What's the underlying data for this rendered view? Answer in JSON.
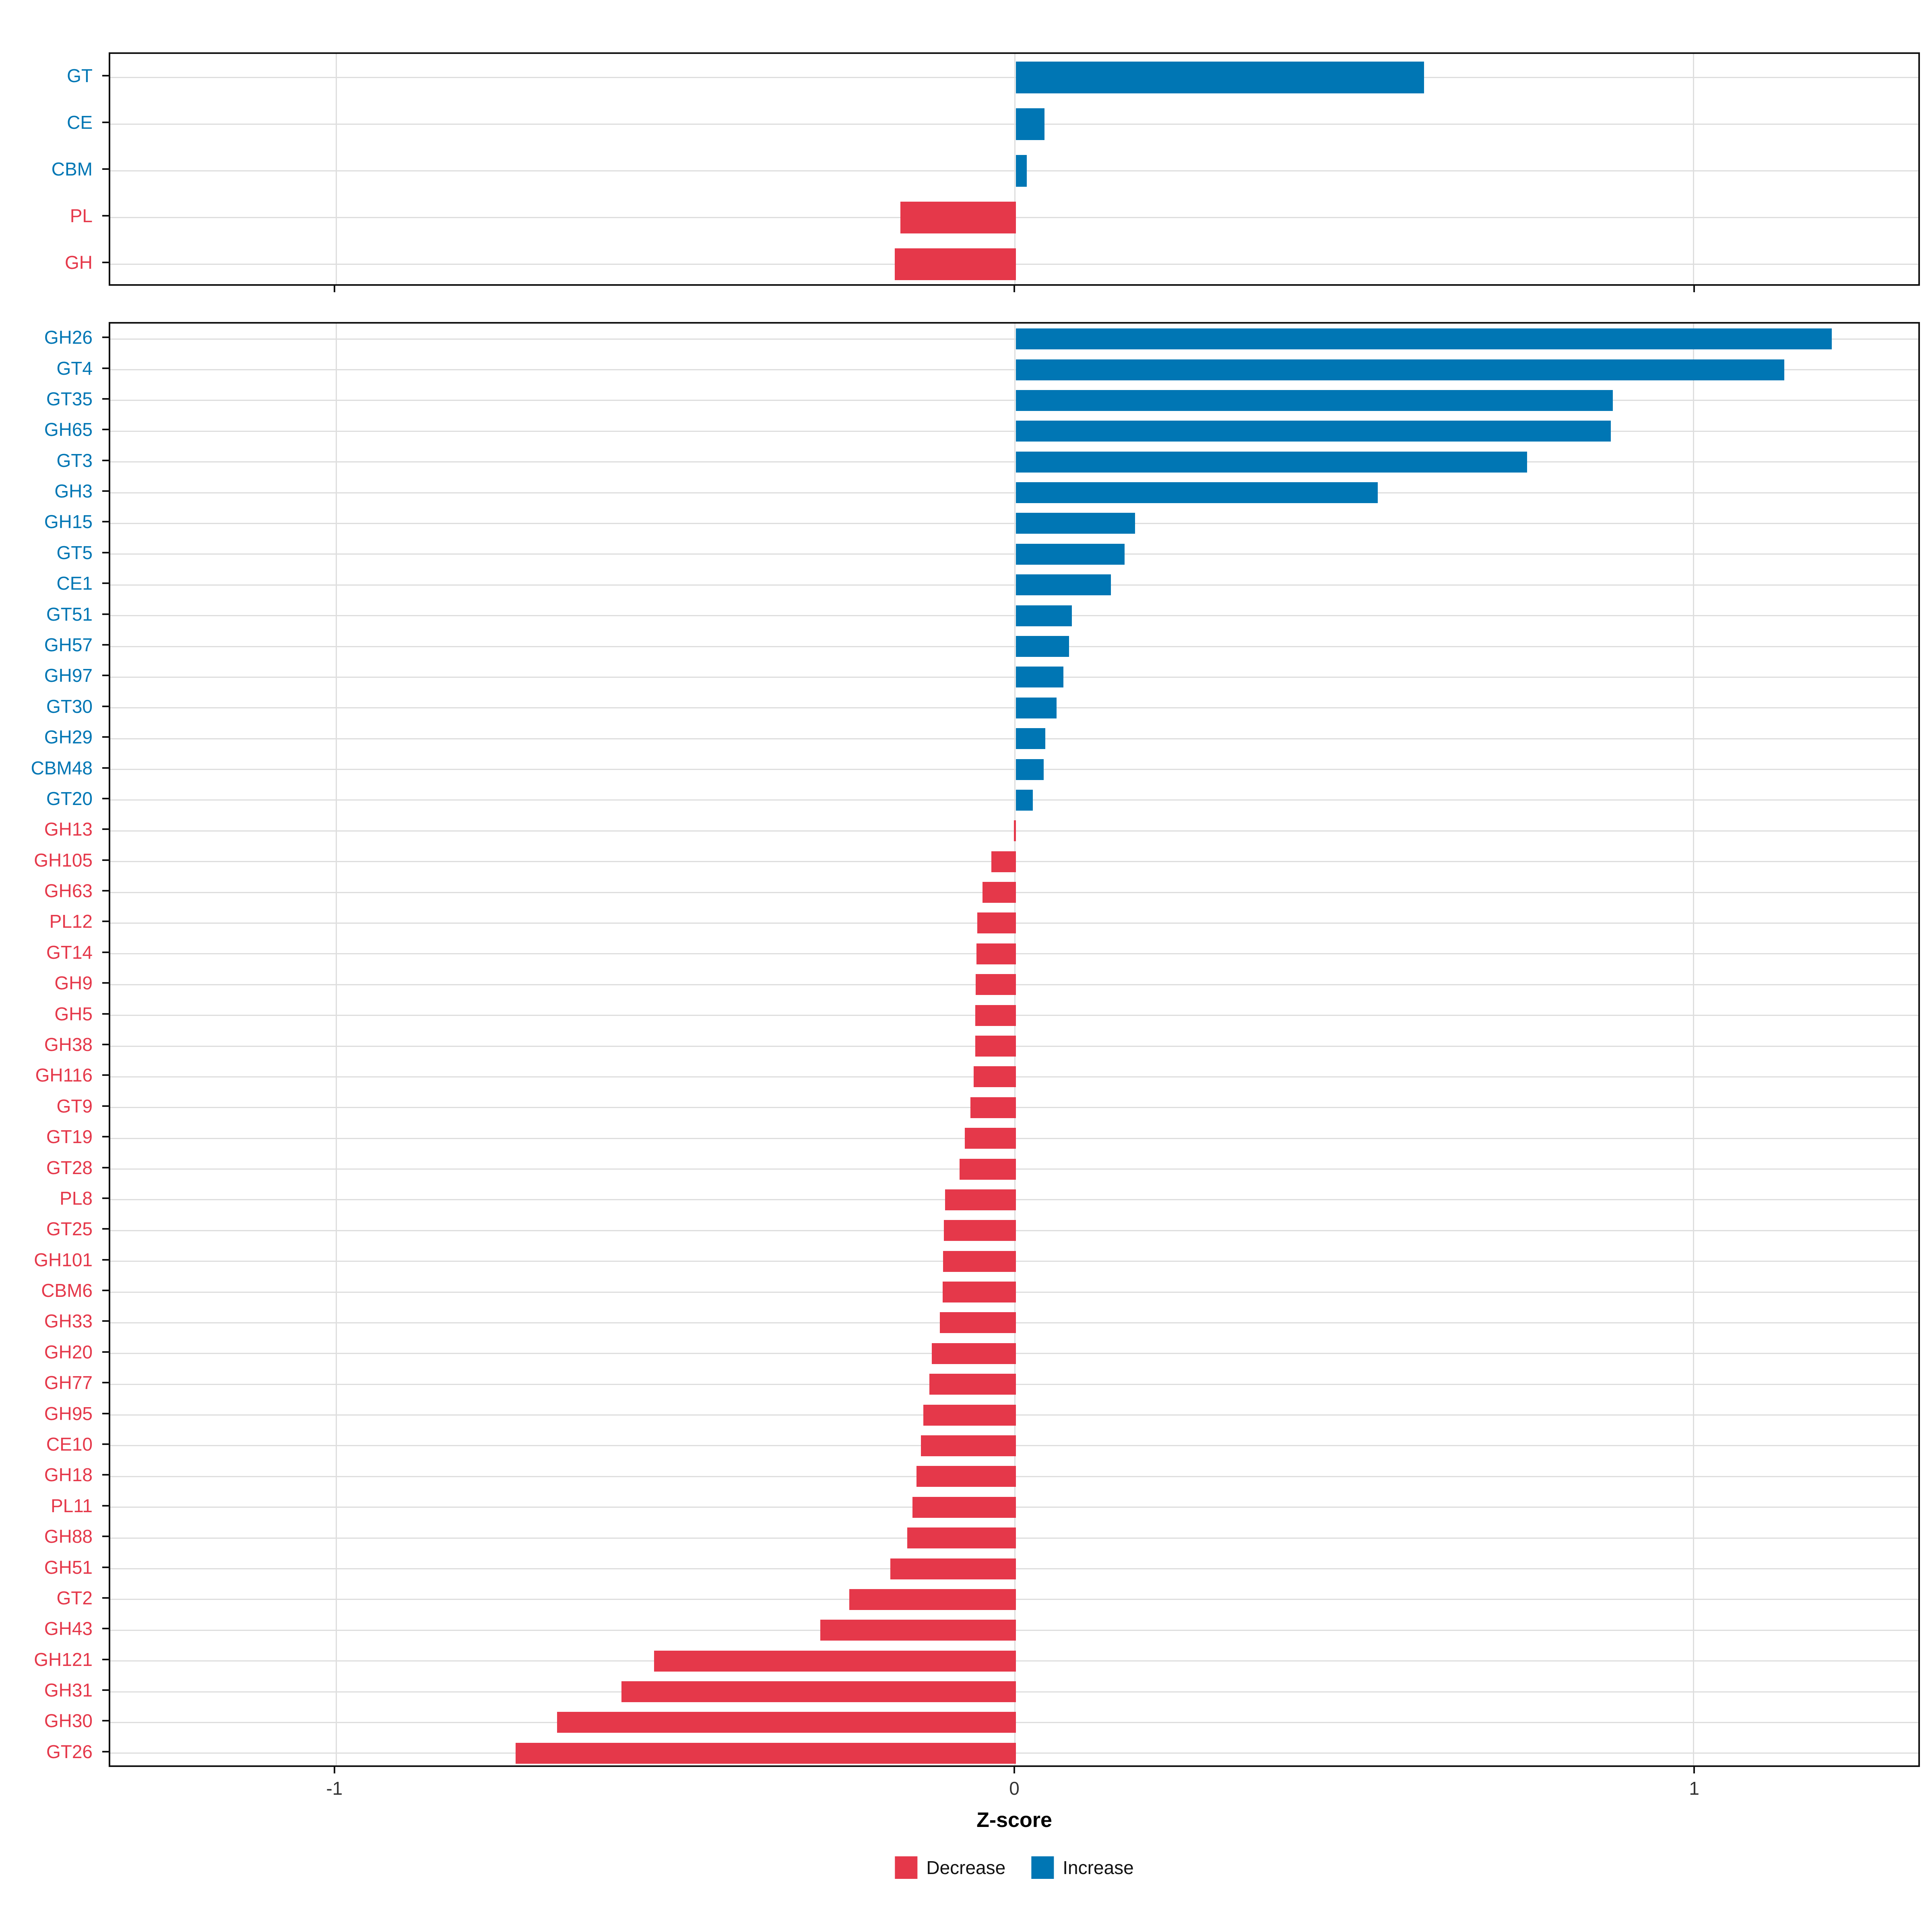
{
  "chart_data": {
    "type": "bar",
    "orientation": "horizontal",
    "xlabel": "Z-score",
    "x_ticks": [
      -1,
      0,
      1
    ],
    "x_tick_labels": [
      "-1",
      "0",
      "1"
    ],
    "xlim": [
      -1.332,
      1.332
    ],
    "grid": true,
    "legend_position": "bottom",
    "colors": {
      "increase": "#0076B4",
      "decrease": "#E5384A",
      "gridline": "#DEDEDE",
      "panel_border": "#111111",
      "tick_text": "#333333"
    },
    "legend": [
      {
        "label": "Decrease",
        "color": "#E5384A"
      },
      {
        "label": "Increase",
        "color": "#0076B4"
      }
    ],
    "panels": [
      {
        "name": "groups",
        "categories": [
          "GT",
          "CE",
          "CBM",
          "PL",
          "GH"
        ],
        "values": [
          0.6,
          0.042,
          0.016,
          -0.17,
          -0.178
        ]
      },
      {
        "name": "families",
        "categories": [
          "GH26",
          "GT4",
          "GT35",
          "GH65",
          "GT3",
          "GH3",
          "GH15",
          "GT5",
          "CE1",
          "GT51",
          "GH57",
          "GH97",
          "GT30",
          "GH29",
          "CBM48",
          "GT20",
          "GH13",
          "GH105",
          "GH63",
          "PL12",
          "GT14",
          "GH9",
          "GH5",
          "GH38",
          "GH116",
          "GT9",
          "GT19",
          "GT28",
          "PL8",
          "GT25",
          "GH101",
          "CBM6",
          "GH33",
          "GH20",
          "GH77",
          "GH95",
          "CE10",
          "GH18",
          "PL11",
          "GH88",
          "GH51",
          "GT2",
          "GH43",
          "GH121",
          "GH31",
          "GH30",
          "GT26"
        ],
        "values": [
          1.2,
          1.13,
          0.878,
          0.875,
          0.752,
          0.532,
          0.175,
          0.16,
          0.14,
          0.082,
          0.078,
          0.07,
          0.06,
          0.043,
          0.041,
          0.025,
          -0.003,
          -0.036,
          -0.049,
          -0.057,
          -0.058,
          -0.059,
          -0.06,
          -0.06,
          -0.062,
          -0.067,
          -0.075,
          -0.083,
          -0.104,
          -0.106,
          -0.107,
          -0.108,
          -0.112,
          -0.124,
          -0.127,
          -0.136,
          -0.14,
          -0.146,
          -0.152,
          -0.16,
          -0.185,
          -0.245,
          -0.288,
          -0.532,
          -0.58,
          -0.675,
          -0.736
        ]
      }
    ]
  }
}
